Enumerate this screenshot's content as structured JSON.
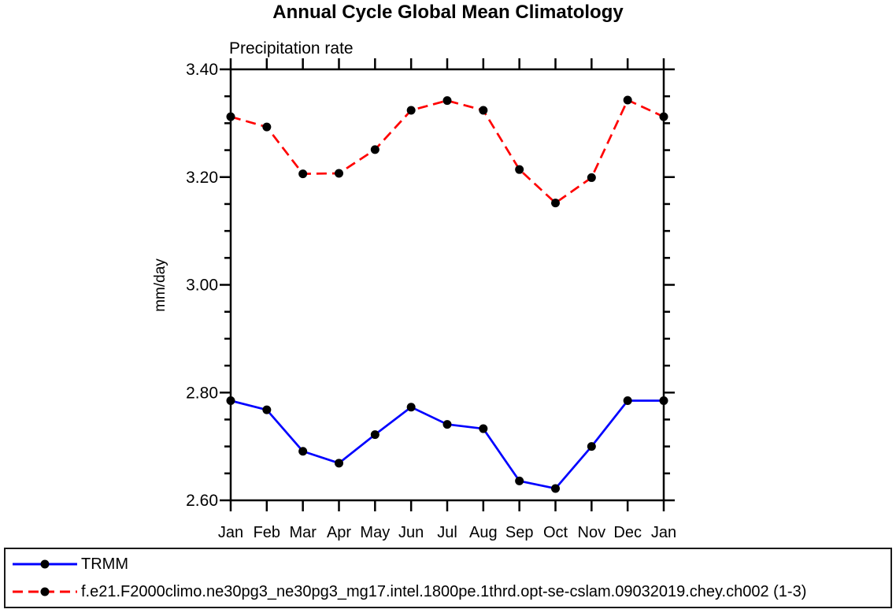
{
  "chart_data": {
    "type": "line",
    "title": "Annual Cycle Global Mean Climatology",
    "left_string": "Precipitation rate",
    "ylabel": "mm/day",
    "x_categories": [
      "Jan",
      "Feb",
      "Mar",
      "Apr",
      "May",
      "Jun",
      "Jul",
      "Aug",
      "Sep",
      "Oct",
      "Nov",
      "Dec",
      "Jan"
    ],
    "ylim": [
      2.6,
      3.4
    ],
    "yticks_major": [
      {
        "label": "2.60",
        "value": 2.6
      },
      {
        "label": "2.80",
        "value": 2.8
      },
      {
        "label": "3.00",
        "value": 3.0
      },
      {
        "label": "3.20",
        "value": 3.2
      },
      {
        "label": "3.40",
        "value": 3.4
      }
    ],
    "yticks_minor": [
      2.65,
      2.7,
      2.75,
      2.85,
      2.9,
      2.95,
      3.05,
      3.1,
      3.15,
      3.25,
      3.3,
      3.35
    ],
    "grid": false,
    "legend_position": "bottom-box",
    "series": [
      {
        "name": "TRMM",
        "color": "#0000ff",
        "line_style": "solid",
        "marker": "circle",
        "marker_color": "#000000",
        "values": [
          2.785,
          2.768,
          2.691,
          2.669,
          2.722,
          2.773,
          2.741,
          2.733,
          2.636,
          2.622,
          2.7,
          2.785,
          2.785
        ]
      },
      {
        "name": "f.e21.F2000climo.ne30pg3_ne30pg3_mg17.intel.1800pe.1thrd.opt-se-cslam.09032019.chey.ch002 (1-3)",
        "color": "#ff0000",
        "line_style": "dashed",
        "marker": "circle",
        "marker_color": "#000000",
        "values": [
          3.312,
          3.293,
          3.206,
          3.207,
          3.251,
          3.324,
          3.342,
          3.324,
          3.214,
          3.152,
          3.199,
          3.343,
          3.312
        ]
      }
    ]
  }
}
